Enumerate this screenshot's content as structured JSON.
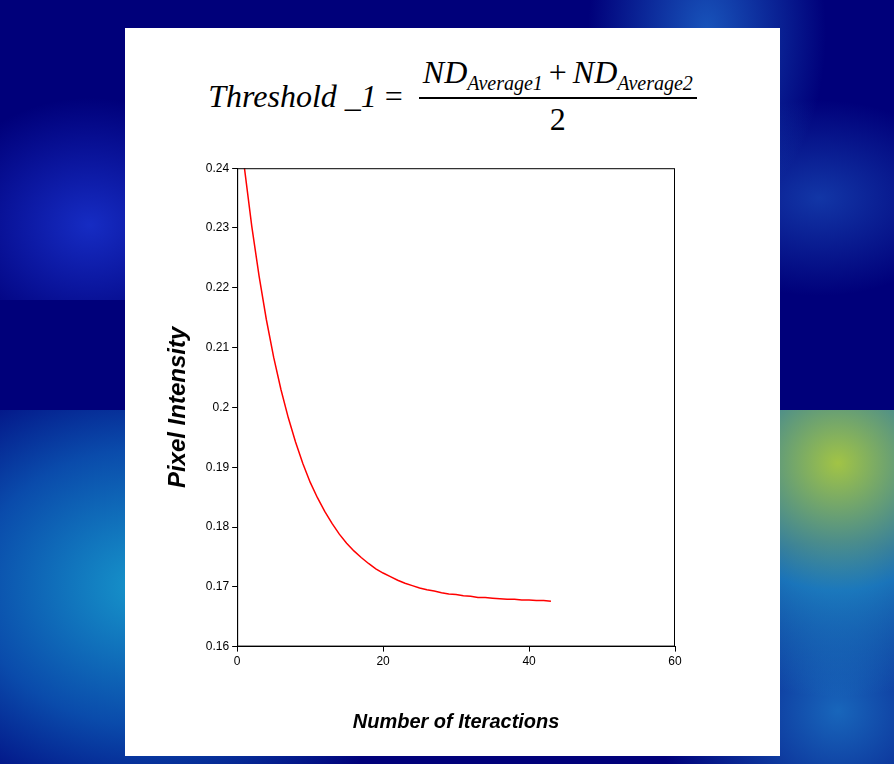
{
  "formula": {
    "lhs": "Threshold _1",
    "relation": "=",
    "numerator": [
      {
        "base": "ND",
        "sub": "Average1"
      },
      {
        "base": "ND",
        "sub": "Average2"
      }
    ],
    "operator": "+",
    "denominator": "2"
  },
  "chart_data": {
    "type": "line",
    "xlabel": "Number of Iteractions",
    "ylabel": "Pixel Intensity",
    "x": [
      1,
      2,
      3,
      4,
      5,
      6,
      7,
      8,
      9,
      10,
      11,
      12,
      13,
      14,
      15,
      16,
      17,
      18,
      19,
      20,
      21,
      22,
      23,
      24,
      25,
      26,
      27,
      28,
      29,
      30,
      31,
      32,
      33,
      34,
      35,
      36,
      37,
      38,
      39,
      40,
      41,
      42,
      43
    ],
    "values": [
      0.24,
      0.2303,
      0.222,
      0.2147,
      0.2084,
      0.203,
      0.1983,
      0.1942,
      0.1906,
      0.1875,
      0.1849,
      0.1826,
      0.1806,
      0.1788,
      0.1773,
      0.176,
      0.1749,
      0.1739,
      0.173,
      0.1723,
      0.1717,
      0.1711,
      0.1706,
      0.1702,
      0.1698,
      0.1695,
      0.1693,
      0.169,
      0.1688,
      0.1687,
      0.1685,
      0.1684,
      0.1682,
      0.1682,
      0.1681,
      0.168,
      0.1679,
      0.1679,
      0.1678,
      0.1678,
      0.1677,
      0.1677,
      0.1676
    ],
    "color": "#ff0000",
    "marker": "none",
    "line_style": "solid",
    "xlim": [
      0,
      60
    ],
    "xticks": [
      0,
      20,
      40,
      60
    ],
    "ylim": [
      0.16,
      0.24
    ],
    "yticks": [
      0.16,
      0.17,
      0.18,
      0.19,
      0.2,
      0.21,
      0.22,
      0.23,
      0.24
    ],
    "grid": false
  }
}
